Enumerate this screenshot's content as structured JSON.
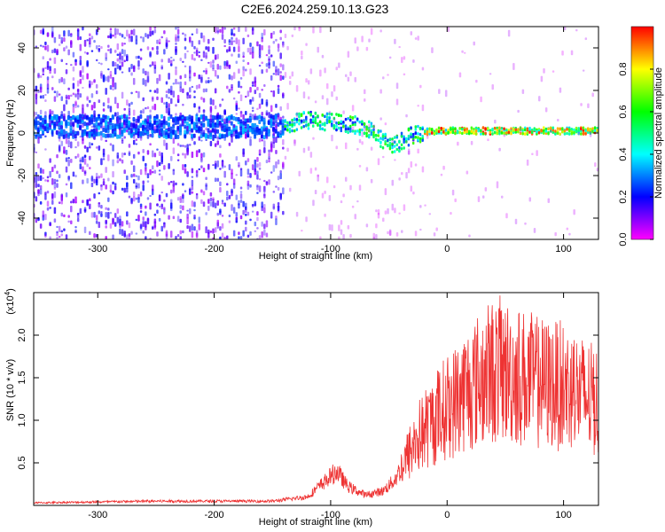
{
  "title": "C2E6.2024.259.10.13.G23",
  "chart_data": [
    {
      "type": "heatmap",
      "xlabel": "Height of straight line (km)",
      "ylabel": "Frequency (Hz)",
      "xlim": [
        -355,
        130
      ],
      "ylim": [
        -50,
        50
      ],
      "x_ticks": [
        -300,
        -200,
        -100,
        0,
        100
      ],
      "y_ticks": [
        -40,
        -20,
        0,
        20,
        40
      ],
      "colorbar": {
        "label": "Normalized spectral amplitude",
        "range": [
          0,
          1
        ],
        "ticks": [
          "0.0",
          "0.2",
          "0.4",
          "0.6",
          "0.8"
        ],
        "colors": [
          "#ff00ff",
          "#0000ff",
          "#00ffff",
          "#00ff00",
          "#ffff00",
          "#ff0000"
        ]
      },
      "signal_trace": {
        "x": [
          -355,
          -300,
          -250,
          -200,
          -150,
          -120,
          -100,
          -80,
          -65,
          -55,
          -45,
          -30,
          -15,
          0,
          20,
          40,
          60,
          80,
          100,
          130
        ],
        "y": [
          3,
          3,
          3,
          3,
          3,
          6,
          5,
          4,
          1,
          -4,
          -6,
          -1,
          1,
          1,
          1,
          1,
          1,
          1,
          1,
          1
        ]
      }
    },
    {
      "type": "line",
      "xlabel": "Height of straight line (km)",
      "ylabel": "SNR (10 * v/v)",
      "y_multiplier": "(x10",
      "y_multiplier_exp": "4",
      "y_multiplier_close": ")",
      "xlim": [
        -355,
        130
      ],
      "ylim": [
        0,
        2.5
      ],
      "x_ticks": [
        -300,
        -200,
        -100,
        0,
        100
      ],
      "y_ticks": [
        "0.5",
        "1.0",
        "1.5",
        "2.0"
      ],
      "line_color": "#ee3333",
      "envelope": {
        "x": [
          -355,
          -250,
          -150,
          -120,
          -105,
          -95,
          -85,
          -70,
          -55,
          -45,
          -35,
          -25,
          -15,
          -5,
          5,
          15,
          25,
          35,
          45,
          55,
          70,
          85,
          100,
          115,
          130
        ],
        "y": [
          0.03,
          0.05,
          0.05,
          0.1,
          0.28,
          0.4,
          0.22,
          0.12,
          0.17,
          0.3,
          0.55,
          0.8,
          0.95,
          1.1,
          1.2,
          1.35,
          1.45,
          1.55,
          1.6,
          1.55,
          1.48,
          1.42,
          1.4,
          1.3,
          1.2
        ]
      }
    }
  ]
}
